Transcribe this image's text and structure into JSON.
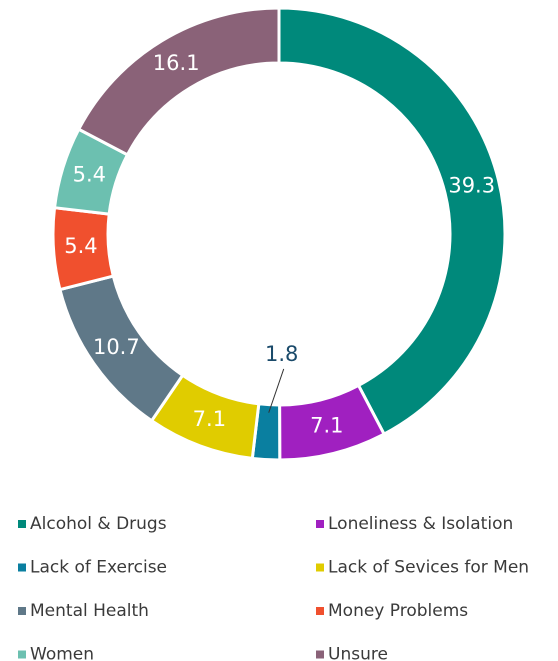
{
  "chart_data": {
    "type": "doughnut",
    "categories": [
      "Alcohol & Drugs",
      "Loneliness & Isolation",
      "Lack of Exercise",
      "Lack of Sevices for Men",
      "Mental Health",
      "Money Problems",
      "Women",
      "Unsure"
    ],
    "values": [
      39.3,
      7.1,
      1.8,
      7.1,
      10.7,
      5.4,
      5.4,
      16.1
    ],
    "colors": [
      "#00897b",
      "#a020c0",
      "#0a7fa0",
      "#e0cc00",
      "#5f7888",
      "#f0502e",
      "#6cc0b0",
      "#8a6278"
    ],
    "legend": "bottom"
  }
}
